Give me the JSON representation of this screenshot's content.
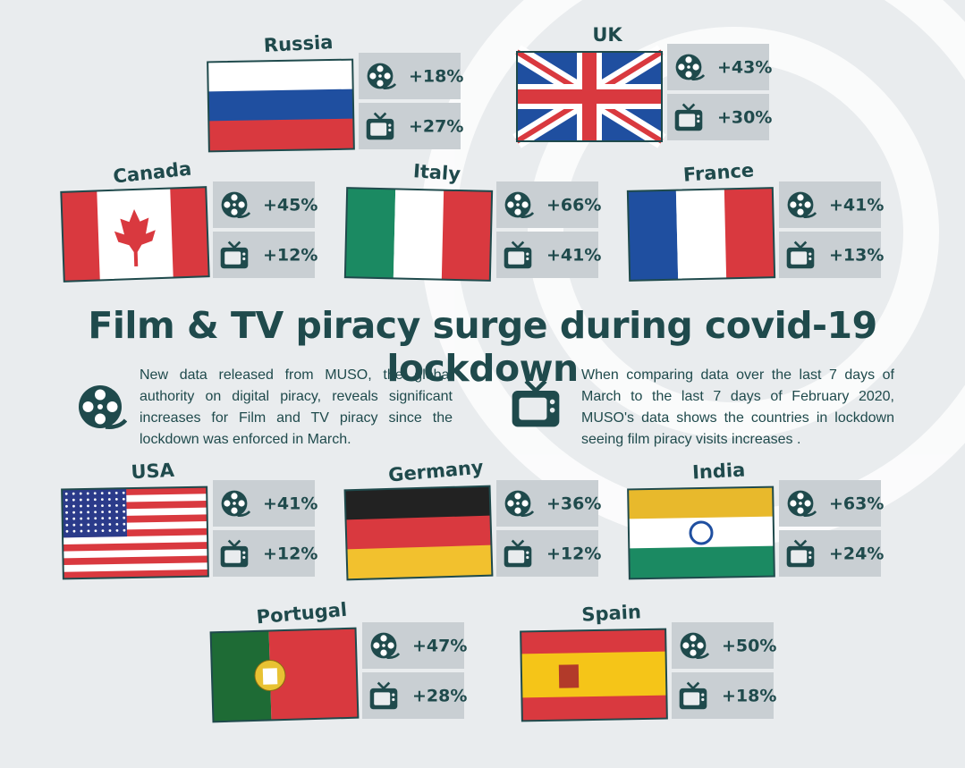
{
  "title": "Film & TV piracy surge during covid-19 lockdown",
  "intro": {
    "film_text": "New data released from MUSO, the global authority on digital piracy, reveals significant increases for Film and TV piracy since the lockdown was enforced in March.",
    "tv_text": "When comparing data over the last 7 days of March to the last 7 days of February 2020, MUSO's data shows the countries in lockdown seeing film piracy visits increases ."
  },
  "countries": [
    {
      "name": "Russia",
      "film": "+18%",
      "tv": "+27%"
    },
    {
      "name": "UK",
      "film": "+43%",
      "tv": "+30%"
    },
    {
      "name": "Canada",
      "film": "+45%",
      "tv": "+12%"
    },
    {
      "name": "Italy",
      "film": "+66%",
      "tv": "+41%"
    },
    {
      "name": "France",
      "film": "+41%",
      "tv": "+13%"
    },
    {
      "name": "USA",
      "film": "+41%",
      "tv": "+12%"
    },
    {
      "name": "Germany",
      "film": "+36%",
      "tv": "+12%"
    },
    {
      "name": "India",
      "film": "+63%",
      "tv": "+24%"
    },
    {
      "name": "Portugal",
      "film": "+47%",
      "tv": "+28%"
    },
    {
      "name": "Spain",
      "film": "+50%",
      "tv": "+18%"
    }
  ]
}
